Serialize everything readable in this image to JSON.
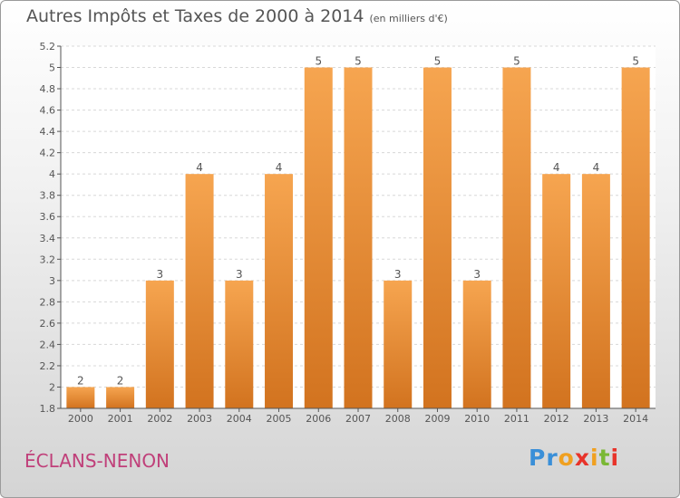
{
  "title": "Autres Impôts et Taxes de 2000 à 2014",
  "subtitle": "(en milliers d'€)",
  "commune": "ÉCLANS-NENON",
  "logo": {
    "text": "Proxiti",
    "letter_colors": [
      "#3a8fd8",
      "#3a8fd8",
      "#f0a020",
      "#e8332a",
      "#f0a020",
      "#7ab834",
      "#e8332a"
    ]
  },
  "colors": {
    "bar_top": "#f6a550",
    "bar_bottom": "#d2731f",
    "axis": "#555555",
    "grid": "#d8d8d8",
    "text": "#555555",
    "commune": "#c0407a"
  },
  "chart_data": {
    "type": "bar",
    "categories": [
      "2000",
      "2001",
      "2002",
      "2003",
      "2004",
      "2005",
      "2006",
      "2007",
      "2008",
      "2009",
      "2010",
      "2011",
      "2012",
      "2013",
      "2014"
    ],
    "values": [
      2,
      2,
      3,
      4,
      3,
      4,
      5,
      5,
      3,
      5,
      3,
      5,
      4,
      4,
      5
    ],
    "data_labels": [
      "2",
      "2",
      "3",
      "4",
      "3",
      "4",
      "5",
      "5",
      "3",
      "5",
      "3",
      "5",
      "4",
      "4",
      "5"
    ],
    "ylim": [
      1.8,
      5.2
    ],
    "yticks": [
      "1.8",
      "2",
      "2.2",
      "2.4",
      "2.6",
      "2.8",
      "3",
      "3.2",
      "3.4",
      "3.6",
      "3.8",
      "4",
      "4.2",
      "4.4",
      "4.6",
      "4.8",
      "5",
      "5.2"
    ],
    "grid": true,
    "legend": "none"
  }
}
